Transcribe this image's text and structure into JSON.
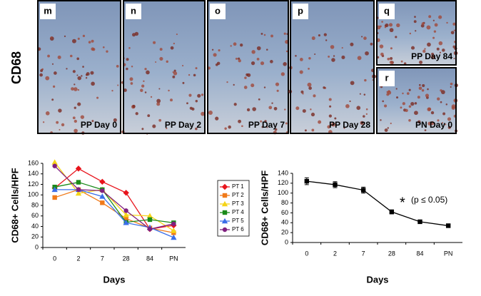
{
  "figure_label": "CD68",
  "panels": [
    {
      "letter": "m",
      "caption": "PP Day 0"
    },
    {
      "letter": "n",
      "caption": "PP Day 2"
    },
    {
      "letter": "o",
      "caption": "PP Day 7"
    },
    {
      "letter": "p",
      "caption": "PP Day 28"
    },
    {
      "letter": "q",
      "caption": "PP Day 84"
    },
    {
      "letter": "r",
      "caption": "PN Day 0"
    }
  ],
  "chart_data": [
    {
      "type": "line",
      "xlabel": "Days",
      "ylabel": "CD68+ Cells/HPF",
      "categories": [
        "0",
        "2",
        "7",
        "28",
        "84",
        "PN"
      ],
      "ylim": [
        0,
        160
      ],
      "yticks": [
        0,
        20,
        40,
        60,
        80,
        100,
        120,
        140,
        160
      ],
      "legend": "right",
      "series": [
        {
          "name": "PT 1",
          "color": "#e8141c",
          "marker": "diamond",
          "values": [
            113,
            150,
            125,
            104,
            35,
            42
          ]
        },
        {
          "name": "PT 2",
          "color": "#f07a1a",
          "marker": "square",
          "values": [
            95,
            110,
            85,
            55,
            37,
            28
          ]
        },
        {
          "name": "PT 3",
          "color": "#f5d417",
          "marker": "triangle",
          "values": [
            162,
            103,
            110,
            62,
            60,
            32
          ]
        },
        {
          "name": "PT 4",
          "color": "#1a8a1a",
          "marker": "square",
          "values": [
            115,
            124,
            110,
            48,
            53,
            47
          ]
        },
        {
          "name": "PT 5",
          "color": "#3a6ee8",
          "marker": "triangle",
          "values": [
            110,
            110,
            97,
            47,
            38,
            19
          ]
        },
        {
          "name": "PT 6",
          "color": "#80207f",
          "marker": "circle",
          "values": [
            155,
            110,
            108,
            70,
            35,
            45
          ]
        }
      ]
    },
    {
      "type": "line",
      "xlabel": "Days",
      "ylabel": "CD68+ Cells/HPF",
      "categories": [
        "0",
        "2",
        "7",
        "28",
        "84",
        "PN"
      ],
      "ylim": [
        0,
        140
      ],
      "yticks": [
        0,
        20,
        40,
        60,
        80,
        100,
        120,
        140
      ],
      "annotations": [
        "*",
        "(p ≤ 0.05)"
      ],
      "series": [
        {
          "color": "#000000",
          "marker": "square",
          "values": [
            124,
            117,
            106,
            62,
            42,
            34
          ],
          "errors": [
            7,
            6,
            6,
            4,
            3,
            3
          ]
        }
      ]
    }
  ]
}
